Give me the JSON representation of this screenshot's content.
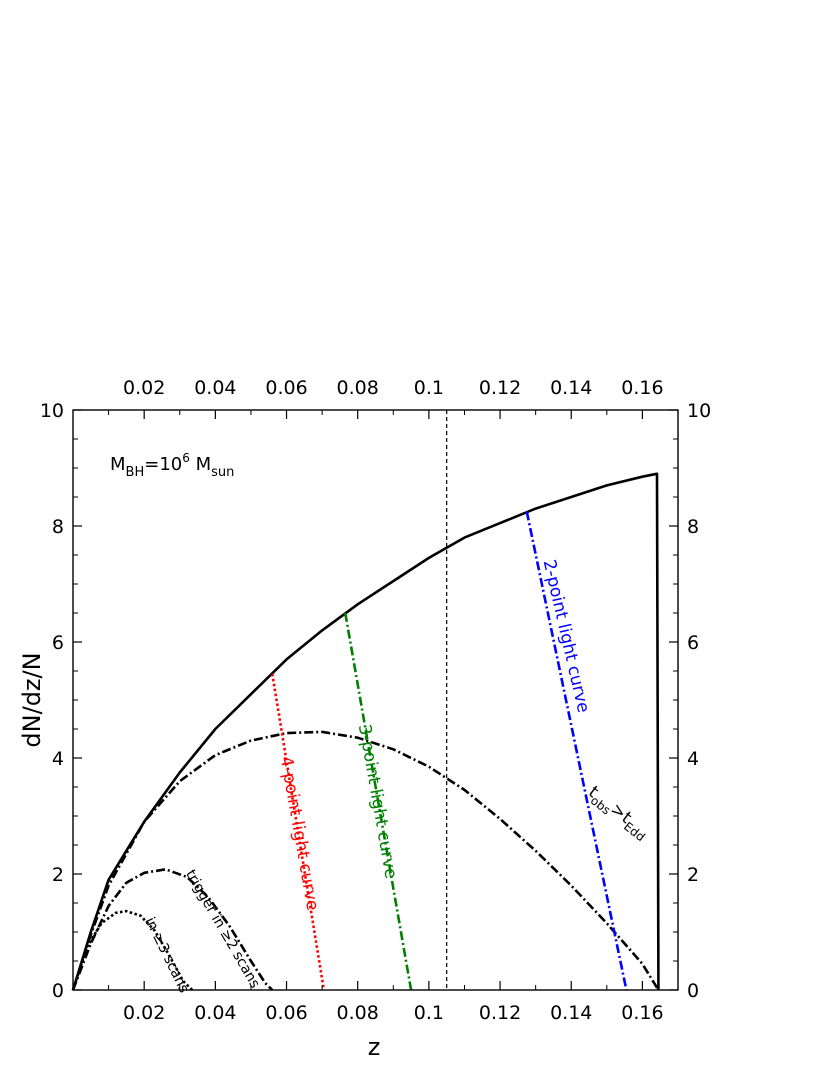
{
  "chart_data": {
    "type": "line",
    "xlabel": "z",
    "ylabel": "dN/dz/N",
    "xlim": [
      0.0,
      0.17
    ],
    "ylim": [
      0,
      10
    ],
    "x_ticks": [
      0.02,
      0.04,
      0.06,
      0.08,
      0.1,
      0.12,
      0.14,
      0.16
    ],
    "x_tick_labels": [
      "0.02",
      "0.04",
      "0.06",
      "0.08",
      "0.1",
      "0.12",
      "0.14",
      "0.16"
    ],
    "y_ticks": [
      0,
      2,
      4,
      6,
      8,
      10
    ],
    "y_tick_labels": [
      "0",
      "2",
      "4",
      "6",
      "8",
      "10"
    ],
    "grid": false,
    "mass_label": {
      "main": "M",
      "main_sub": "BH",
      "eq": "=10",
      "exp": "6",
      "unit": " M",
      "unit_sub": "sun"
    },
    "vertical_reference_line": {
      "x": 0.105,
      "style": "dashed",
      "color": "#000000"
    },
    "series": [
      {
        "id": "total",
        "style": "solid",
        "color": "#000000",
        "x": [
          0,
          0.005,
          0.01,
          0.02,
          0.03,
          0.04,
          0.05,
          0.06,
          0.07,
          0.08,
          0.09,
          0.1,
          0.11,
          0.12,
          0.13,
          0.14,
          0.15,
          0.16,
          0.164,
          0.1641,
          0.1645
        ],
        "y": [
          0,
          1.0,
          1.9,
          2.9,
          3.75,
          4.5,
          5.1,
          5.7,
          6.2,
          6.65,
          7.05,
          7.45,
          7.8,
          8.05,
          8.3,
          8.5,
          8.7,
          8.85,
          8.9,
          8.9,
          0
        ]
      },
      {
        "id": "t_obs_gt_t_edd",
        "style": "dashdot",
        "color": "#000000",
        "x": [
          0,
          0.005,
          0.01,
          0.02,
          0.03,
          0.04,
          0.05,
          0.06,
          0.07,
          0.08,
          0.09,
          0.1,
          0.11,
          0.12,
          0.13,
          0.14,
          0.15,
          0.16,
          0.1645
        ],
        "y": [
          0,
          0.95,
          1.8,
          2.9,
          3.6,
          4.05,
          4.3,
          4.43,
          4.45,
          4.35,
          4.15,
          3.85,
          3.45,
          2.95,
          2.4,
          1.8,
          1.15,
          0.45,
          0
        ]
      },
      {
        "id": "trigger_2_scans",
        "style": "dashdot",
        "color": "#000000",
        "x": [
          0,
          0.005,
          0.01,
          0.015,
          0.02,
          0.026,
          0.032,
          0.038,
          0.044,
          0.05,
          0.054,
          0.056
        ],
        "y": [
          0,
          0.8,
          1.45,
          1.85,
          2.02,
          2.08,
          1.95,
          1.6,
          1.1,
          0.5,
          0.12,
          0
        ]
      },
      {
        "id": "in_3_scans",
        "style": "dotted",
        "color": "#000000",
        "x": [
          0,
          0.004,
          0.008,
          0.012,
          0.015,
          0.019,
          0.023,
          0.027,
          0.031,
          0.0335
        ],
        "y": [
          0,
          0.75,
          1.15,
          1.33,
          1.36,
          1.28,
          1.02,
          0.6,
          0.15,
          0
        ]
      },
      {
        "id": "four_point",
        "name": "4-point light curve",
        "style": "dotted",
        "color": "#ff0000",
        "x": [
          0.056,
          0.0705
        ],
        "y": [
          5.45,
          0
        ]
      },
      {
        "id": "three_point",
        "name": "3-point light curve",
        "style": "dashdot",
        "color": "#008000",
        "x": [
          0.0765,
          0.095
        ],
        "y": [
          6.5,
          0
        ]
      },
      {
        "id": "two_point",
        "name": "2-point light curve",
        "style": "dashdot",
        "color": "#0000ff",
        "x": [
          0.1275,
          0.1555
        ],
        "y": [
          8.25,
          0
        ]
      }
    ],
    "annotations": [
      {
        "id": "four_point",
        "text": "4-point light curve",
        "x": 0.0635,
        "y": 2.7,
        "rotation": 80,
        "color": "#ff0000",
        "size": 17
      },
      {
        "id": "three_point",
        "text": "3-point light curve",
        "x": 0.0855,
        "y": 3.25,
        "rotation": 80,
        "color": "#008000",
        "size": 17
      },
      {
        "id": "two_point",
        "text": "2-point light curve",
        "x": 0.1385,
        "y": 6.1,
        "rotation": 77,
        "color": "#0000ff",
        "size": 17
      },
      {
        "id": "trigger",
        "text": "trigger in ≥2 scans",
        "x": 0.042,
        "y": 1.05,
        "rotation": 60,
        "color": "#000000",
        "size": 14
      },
      {
        "id": "in3",
        "text": "in ≥3 scans",
        "x": 0.0263,
        "y": 0.6,
        "rotation": 64,
        "color": "#000000",
        "size": 14
      }
    ],
    "tobs_label": {
      "t1": "t",
      "t1_sub": "obs",
      "gt": ">",
      "t2": "t",
      "t2_sub": "Edd",
      "x": 0.1525,
      "y": 3.0,
      "rotation": 38
    }
  }
}
